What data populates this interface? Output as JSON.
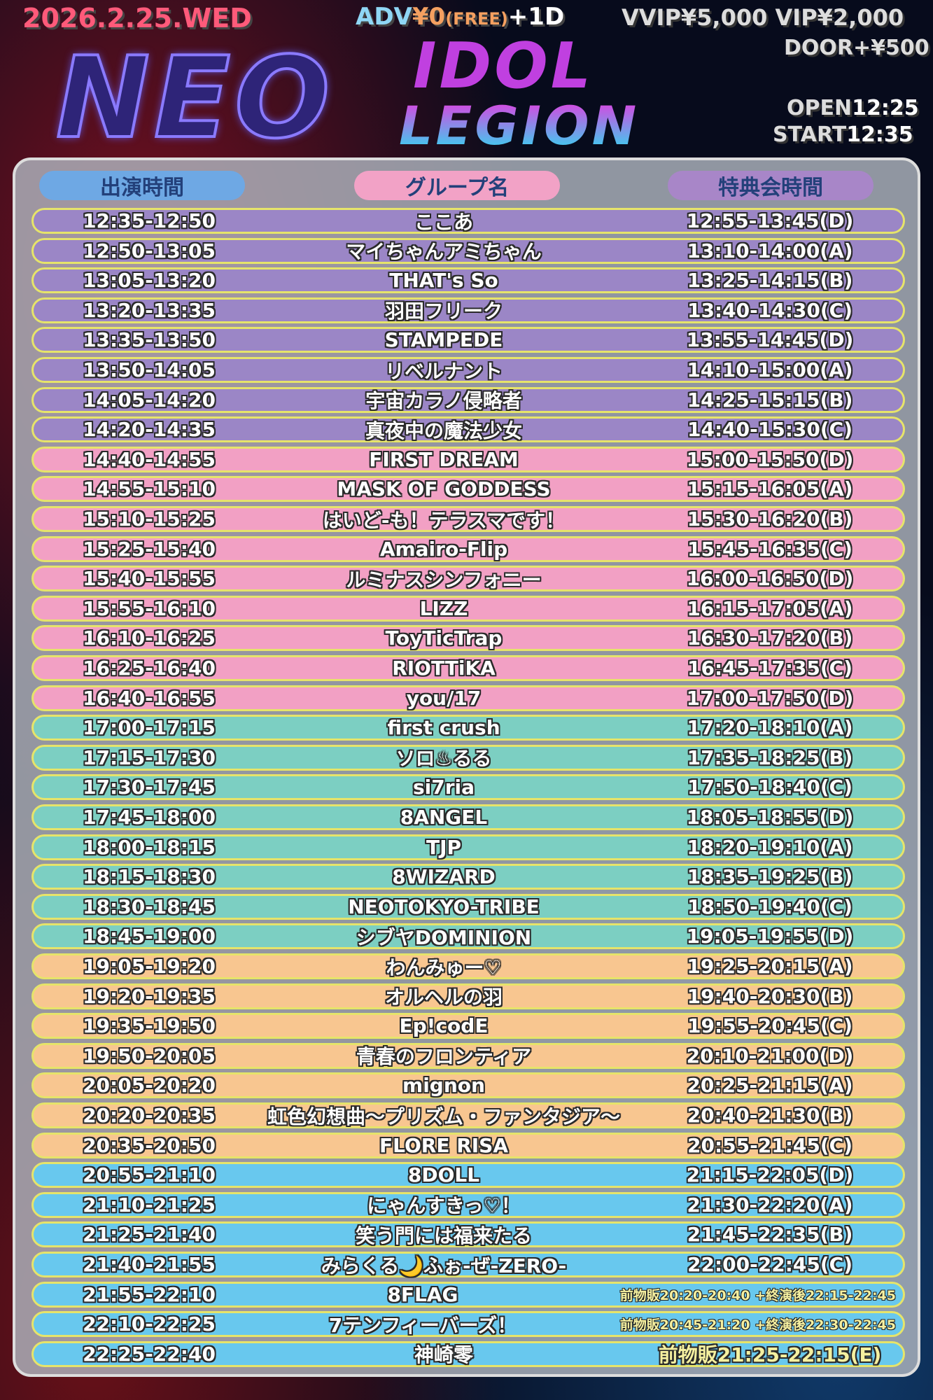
{
  "header": {
    "date": "2026.2.25.WED",
    "adv": "ADV",
    "adv_price": "¥0",
    "adv_free": "(FREE)",
    "adv_drink": "+1D",
    "vvip": "VVIP¥5,000",
    "vip": "VIP¥2,000",
    "door": "DOOR+¥500",
    "open_label": "OPEN",
    "open_time": "12:25",
    "start_label": "START",
    "start_time": "12:35"
  },
  "logo": {
    "line1": "NEO",
    "line2": "IDOL",
    "line3": "LEGION"
  },
  "table": {
    "headers": [
      "出演時間",
      "グループ名",
      "特典会時間"
    ],
    "colors": {
      "purple": "#9b86c6",
      "pink": "#f2a0c4",
      "teal": "#7ccfc2",
      "orange": "#f8c690",
      "blue": "#68c8ee"
    },
    "rows": [
      [
        "12:35-12:50",
        "ここあ",
        "12:55-13:45(D)",
        "purple"
      ],
      [
        "12:50-13:05",
        "マイちゃんアミちゃん",
        "13:10-14:00(A)",
        "purple"
      ],
      [
        "13:05-13:20",
        "THAT's So",
        "13:25-14:15(B)",
        "purple"
      ],
      [
        "13:20-13:35",
        "羽田フリーク",
        "13:40-14:30(C)",
        "purple"
      ],
      [
        "13:35-13:50",
        "STAMPEDE",
        "13:55-14:45(D)",
        "purple"
      ],
      [
        "13:50-14:05",
        "リベルナント",
        "14:10-15:00(A)",
        "purple"
      ],
      [
        "14:05-14:20",
        "宇宙カラノ侵略者",
        "14:25-15:15(B)",
        "purple"
      ],
      [
        "14:20-14:35",
        "真夜中の魔法少女",
        "14:40-15:30(C)",
        "purple"
      ],
      [
        "14:40-14:55",
        "FIRST DREAM",
        "15:00-15:50(D)",
        "pink"
      ],
      [
        "14:55-15:10",
        "MASK OF GODDESS",
        "15:15-16:05(A)",
        "pink"
      ],
      [
        "15:10-15:25",
        "はいど-も！テラスマです！",
        "15:30-16:20(B)",
        "pink"
      ],
      [
        "15:25-15:40",
        "Amairo-Flip",
        "15:45-16:35(C)",
        "pink"
      ],
      [
        "15:40-15:55",
        "ルミナスシンフォニー",
        "16:00-16:50(D)",
        "pink"
      ],
      [
        "15:55-16:10",
        "LIZZ",
        "16:15-17:05(A)",
        "pink"
      ],
      [
        "16:10-16:25",
        "ToyTicTrap",
        "16:30-17:20(B)",
        "pink"
      ],
      [
        "16:25-16:40",
        "RIOTTiKA",
        "16:45-17:35(C)",
        "pink"
      ],
      [
        "16:40-16:55",
        "you/17",
        "17:00-17:50(D)",
        "pink"
      ],
      [
        "17:00-17:15",
        "first crush",
        "17:20-18:10(A)",
        "teal"
      ],
      [
        "17:15-17:30",
        "ソロ♨るる",
        "17:35-18:25(B)",
        "teal"
      ],
      [
        "17:30-17:45",
        "si7ria",
        "17:50-18:40(C)",
        "teal"
      ],
      [
        "17:45-18:00",
        "8ANGEL",
        "18:05-18:55(D)",
        "teal"
      ],
      [
        "18:00-18:15",
        "TJP",
        "18:20-19:10(A)",
        "teal"
      ],
      [
        "18:15-18:30",
        "8WIZARD",
        "18:35-19:25(B)",
        "teal"
      ],
      [
        "18:30-18:45",
        "NEOTOKYO-TRIBE",
        "18:50-19:40(C)",
        "teal"
      ],
      [
        "18:45-19:00",
        "シブヤDOMINION",
        "19:05-19:55(D)",
        "teal"
      ],
      [
        "19:05-19:20",
        "わんみゅー♡",
        "19:25-20:15(A)",
        "orange"
      ],
      [
        "19:20-19:35",
        "オルヘルの羽",
        "19:40-20:30(B)",
        "orange"
      ],
      [
        "19:35-19:50",
        "Ep!codE",
        "19:55-20:45(C)",
        "orange"
      ],
      [
        "19:50-20:05",
        "青春のフロンティア",
        "20:10-21:00(D)",
        "orange"
      ],
      [
        "20:05-20:20",
        "mignon",
        "20:25-21:15(A)",
        "orange"
      ],
      [
        "20:20-20:35",
        "虹色幻想曲〜プリズム・ファンタジア〜",
        "20:40-21:30(B)",
        "orange"
      ],
      [
        "20:35-20:50",
        "FLORE RISA",
        "20:55-21:45(C)",
        "orange"
      ],
      [
        "20:55-21:10",
        "8DOLL",
        "21:15-22:05(D)",
        "blue"
      ],
      [
        "21:10-21:25",
        "にゃんすきっ♡！",
        "21:30-22:20(A)",
        "blue"
      ],
      [
        "21:25-21:40",
        "笑う門には福来たる",
        "21:45-22:35(B)",
        "blue"
      ],
      [
        "21:40-21:55",
        "みらくる🌙ふぉ-ぜ-ZERO-",
        "22:00-22:45(C)",
        "blue"
      ],
      [
        "21:55-22:10",
        "8FLAG",
        "前物販20:20-20:40 +終演後22:15-22:45",
        "blue"
      ],
      [
        "22:10-22:25",
        "7テンフィーバーズ！",
        "前物販20:45-21:20 +終演後22:30-22:45",
        "blue"
      ],
      [
        "22:25-22:40",
        "神崎零",
        "前物販21:25-22:15(E)",
        "blue"
      ]
    ]
  }
}
